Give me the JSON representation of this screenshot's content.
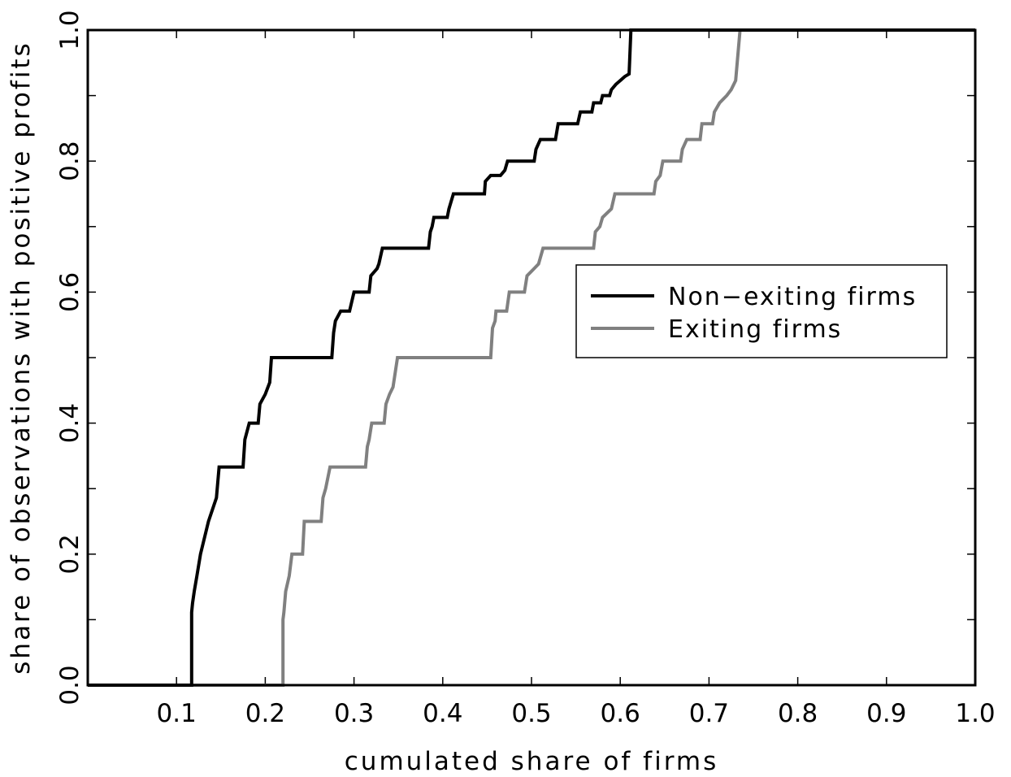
{
  "chart_data": {
    "type": "line",
    "title": "",
    "xlabel": "cumulated share of firms",
    "ylabel": "share of observations with positive profits",
    "xlim": [
      0.0,
      1.0
    ],
    "ylim": [
      0.0,
      1.0
    ],
    "x_tick_labels": [
      "0.1",
      "0.2",
      "0.3",
      "0.4",
      "0.5",
      "0.6",
      "0.7",
      "0.8",
      "0.9",
      "1.0"
    ],
    "y_tick_labels": [
      "0.0",
      "0.2",
      "0.4",
      "0.6",
      "0.8",
      "1.0"
    ],
    "grid": false,
    "legend_position": "center-right",
    "step": true,
    "series": [
      {
        "name": "Non−exiting firms",
        "color": "#000000",
        "points": [
          [
            0.0,
            0.0
          ],
          [
            0.117,
            0.0
          ],
          [
            0.117,
            0.111
          ],
          [
            0.118,
            0.125
          ],
          [
            0.12,
            0.143
          ],
          [
            0.123,
            0.167
          ],
          [
            0.127,
            0.2
          ],
          [
            0.136,
            0.25
          ],
          [
            0.145,
            0.286
          ],
          [
            0.148,
            0.333
          ],
          [
            0.175,
            0.333
          ],
          [
            0.177,
            0.375
          ],
          [
            0.182,
            0.4
          ],
          [
            0.192,
            0.4
          ],
          [
            0.194,
            0.429
          ],
          [
            0.2,
            0.444
          ],
          [
            0.203,
            0.455
          ],
          [
            0.205,
            0.462
          ],
          [
            0.207,
            0.5
          ],
          [
            0.275,
            0.5
          ],
          [
            0.277,
            0.538
          ],
          [
            0.279,
            0.556
          ],
          [
            0.285,
            0.571
          ],
          [
            0.295,
            0.571
          ],
          [
            0.3,
            0.6
          ],
          [
            0.317,
            0.6
          ],
          [
            0.319,
            0.625
          ],
          [
            0.326,
            0.636
          ],
          [
            0.328,
            0.643
          ],
          [
            0.332,
            0.667
          ],
          [
            0.384,
            0.667
          ],
          [
            0.386,
            0.692
          ],
          [
            0.388,
            0.7
          ],
          [
            0.39,
            0.714
          ],
          [
            0.405,
            0.714
          ],
          [
            0.407,
            0.727
          ],
          [
            0.412,
            0.75
          ],
          [
            0.447,
            0.75
          ],
          [
            0.448,
            0.769
          ],
          [
            0.454,
            0.778
          ],
          [
            0.465,
            0.778
          ],
          [
            0.47,
            0.786
          ],
          [
            0.473,
            0.8
          ],
          [
            0.503,
            0.8
          ],
          [
            0.505,
            0.818
          ],
          [
            0.51,
            0.833
          ],
          [
            0.527,
            0.833
          ],
          [
            0.53,
            0.857
          ],
          [
            0.552,
            0.857
          ],
          [
            0.555,
            0.875
          ],
          [
            0.568,
            0.875
          ],
          [
            0.57,
            0.889
          ],
          [
            0.578,
            0.889
          ],
          [
            0.58,
            0.9
          ],
          [
            0.588,
            0.9
          ],
          [
            0.59,
            0.909
          ],
          [
            0.595,
            0.917
          ],
          [
            0.6,
            0.923
          ],
          [
            0.605,
            0.929
          ],
          [
            0.61,
            0.933
          ],
          [
            0.612,
            1.0
          ],
          [
            1.0,
            1.0
          ]
        ]
      },
      {
        "name": "Exiting firms",
        "color": "#808080",
        "points": [
          [
            0.0,
            0.0
          ],
          [
            0.22,
            0.0
          ],
          [
            0.22,
            0.1
          ],
          [
            0.221,
            0.111
          ],
          [
            0.223,
            0.143
          ],
          [
            0.227,
            0.167
          ],
          [
            0.23,
            0.2
          ],
          [
            0.242,
            0.2
          ],
          [
            0.244,
            0.25
          ],
          [
            0.263,
            0.25
          ],
          [
            0.265,
            0.286
          ],
          [
            0.268,
            0.3
          ],
          [
            0.273,
            0.333
          ],
          [
            0.313,
            0.333
          ],
          [
            0.315,
            0.364
          ],
          [
            0.317,
            0.375
          ],
          [
            0.32,
            0.4
          ],
          [
            0.334,
            0.4
          ],
          [
            0.336,
            0.429
          ],
          [
            0.34,
            0.444
          ],
          [
            0.344,
            0.455
          ],
          [
            0.349,
            0.5
          ],
          [
            0.454,
            0.5
          ],
          [
            0.456,
            0.545
          ],
          [
            0.459,
            0.556
          ],
          [
            0.46,
            0.571
          ],
          [
            0.472,
            0.571
          ],
          [
            0.475,
            0.6
          ],
          [
            0.492,
            0.6
          ],
          [
            0.495,
            0.625
          ],
          [
            0.503,
            0.636
          ],
          [
            0.508,
            0.643
          ],
          [
            0.513,
            0.667
          ],
          [
            0.57,
            0.667
          ],
          [
            0.572,
            0.692
          ],
          [
            0.577,
            0.7
          ],
          [
            0.58,
            0.714
          ],
          [
            0.59,
            0.727
          ],
          [
            0.594,
            0.75
          ],
          [
            0.638,
            0.75
          ],
          [
            0.64,
            0.769
          ],
          [
            0.645,
            0.778
          ],
          [
            0.648,
            0.8
          ],
          [
            0.668,
            0.8
          ],
          [
            0.67,
            0.818
          ],
          [
            0.675,
            0.833
          ],
          [
            0.69,
            0.833
          ],
          [
            0.692,
            0.857
          ],
          [
            0.704,
            0.857
          ],
          [
            0.706,
            0.875
          ],
          [
            0.712,
            0.889
          ],
          [
            0.72,
            0.9
          ],
          [
            0.725,
            0.909
          ],
          [
            0.73,
            0.923
          ],
          [
            0.735,
            1.0
          ],
          [
            1.0,
            1.0
          ]
        ]
      }
    ]
  }
}
